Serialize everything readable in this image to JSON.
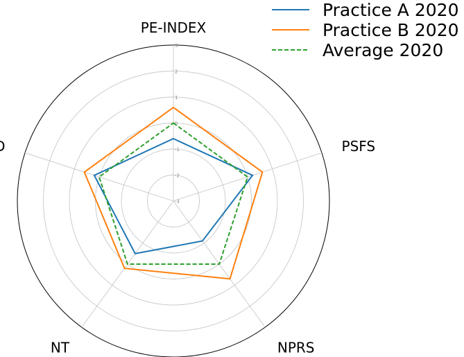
{
  "chart_data": {
    "type": "radar",
    "axes": [
      "PE-INDEX",
      "PSFS",
      "NPRS",
      "NT",
      "TD"
    ],
    "rlim": [
      -3,
      3
    ],
    "ticks": [
      -3,
      -2,
      -1,
      0,
      1,
      2,
      3
    ],
    "tick_labels": [
      "-3",
      "-2",
      "-1",
      "0",
      "1",
      "2",
      "3"
    ],
    "grid": true,
    "legend_position": "top-right",
    "series": [
      {
        "name": "Practice A 2020",
        "values": [
          -0.6,
          0.2,
          -1.1,
          -0.5,
          0.2
        ],
        "color": "#1f77b4",
        "style": "solid"
      },
      {
        "name": "Practice B 2020",
        "values": [
          0.6,
          0.6,
          0.7,
          0.2,
          0.6
        ],
        "color": "#ff7f0e",
        "style": "solid"
      },
      {
        "name": "Average 2020",
        "values": [
          0.0,
          0.0,
          0.0,
          0.0,
          0.0
        ],
        "color": "#2ca02c",
        "style": "dashed"
      }
    ]
  }
}
